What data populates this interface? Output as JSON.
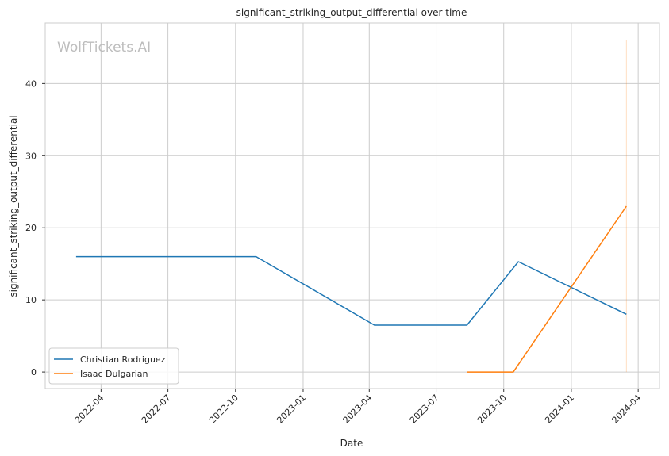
{
  "chart_data": {
    "type": "line",
    "title": "significant_striking_output_differential over time",
    "xlabel": "Date",
    "ylabel": "significant_striking_output_differential",
    "watermark": "WolfTickets.AI",
    "xlim": [
      "2022-01-15",
      "2024-04-30"
    ],
    "ylim": [
      -2.3,
      48.4
    ],
    "grid": true,
    "legend_position": "bottom-left",
    "x_ticks": [
      {
        "date": "2022-04-01",
        "label": "2022-04"
      },
      {
        "date": "2022-07-01",
        "label": "2022-07"
      },
      {
        "date": "2022-10-01",
        "label": "2022-10"
      },
      {
        "date": "2023-01-01",
        "label": "2023-01"
      },
      {
        "date": "2023-04-01",
        "label": "2023-04"
      },
      {
        "date": "2023-07-01",
        "label": "2023-07"
      },
      {
        "date": "2023-10-01",
        "label": "2023-10"
      },
      {
        "date": "2024-01-01",
        "label": "2024-01"
      },
      {
        "date": "2024-04-01",
        "label": "2024-04"
      }
    ],
    "y_ticks": [
      0,
      10,
      20,
      30,
      40
    ],
    "series": [
      {
        "name": "Christian Rodriguez",
        "color": "#1f77b4",
        "points": [
          {
            "x": "2022-02-26",
            "y": 16.0
          },
          {
            "x": "2022-10-29",
            "y": 16.0
          },
          {
            "x": "2023-04-08",
            "y": 6.5
          },
          {
            "x": "2023-08-12",
            "y": 6.5
          },
          {
            "x": "2023-10-21",
            "y": 15.3
          },
          {
            "x": "2024-03-16",
            "y": 8.0
          }
        ]
      },
      {
        "name": "Isaac Dulgarian",
        "color": "#ff7f0e",
        "points": [
          {
            "x": "2023-08-12",
            "y": 0.0
          },
          {
            "x": "2023-10-14",
            "y": 0.0
          },
          {
            "x": "2024-03-16",
            "y": 23.0
          }
        ],
        "error_band": {
          "x": "2024-03-16",
          "low": 0.0,
          "high": 46.0
        }
      }
    ]
  }
}
